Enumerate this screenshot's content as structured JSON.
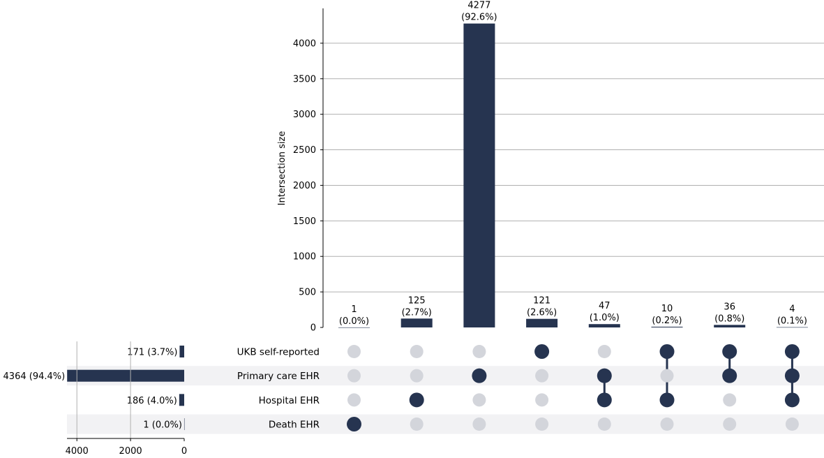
{
  "colors": {
    "bar": "#263450",
    "dot_active": "#263450",
    "dot_inactive": "#d3d5db",
    "row_shade": "#f2f2f4",
    "grid": "#b0b0b0",
    "axis": "#000000"
  },
  "chart_data": {
    "type": "bar",
    "subtype": "upset",
    "ylabel": "Intersection size",
    "ylim": [
      0,
      4500
    ],
    "yticks": [
      "0",
      "500",
      "1000",
      "1500",
      "2000",
      "2500",
      "3000",
      "3500",
      "4000"
    ],
    "grid": true,
    "sets": [
      {
        "name": "UKB self-reported",
        "size": 171,
        "label": "171 (3.7%)"
      },
      {
        "name": "Primary care EHR",
        "size": 4364,
        "label": "4364 (94.4%)"
      },
      {
        "name": "Hospital EHR",
        "size": 186,
        "label": "186 (4.0%)"
      },
      {
        "name": "Death EHR",
        "size": 1,
        "label": "1 (0.0%)"
      }
    ],
    "set_size_ticks": [
      "4000",
      "2000",
      "0"
    ],
    "set_size_tick_values": [
      4000,
      2000,
      0
    ],
    "set_size_max": 4364,
    "intersections": [
      {
        "value": 1,
        "count_label": "1",
        "pct_label": "(0.0%)",
        "members": [
          "Death EHR"
        ]
      },
      {
        "value": 125,
        "count_label": "125",
        "pct_label": "(2.7%)",
        "members": [
          "Hospital EHR"
        ]
      },
      {
        "value": 4277,
        "count_label": "4277",
        "pct_label": "(92.6%)",
        "members": [
          "Primary care EHR"
        ]
      },
      {
        "value": 121,
        "count_label": "121",
        "pct_label": "(2.6%)",
        "members": [
          "UKB self-reported"
        ]
      },
      {
        "value": 47,
        "count_label": "47",
        "pct_label": "(1.0%)",
        "members": [
          "Primary care EHR",
          "Hospital EHR"
        ]
      },
      {
        "value": 10,
        "count_label": "10",
        "pct_label": "(0.2%)",
        "members": [
          "UKB self-reported",
          "Hospital EHR"
        ]
      },
      {
        "value": 36,
        "count_label": "36",
        "pct_label": "(0.8%)",
        "members": [
          "UKB self-reported",
          "Primary care EHR"
        ]
      },
      {
        "value": 4,
        "count_label": "4",
        "pct_label": "(0.1%)",
        "members": [
          "UKB self-reported",
          "Primary care EHR",
          "Hospital EHR"
        ]
      }
    ]
  }
}
